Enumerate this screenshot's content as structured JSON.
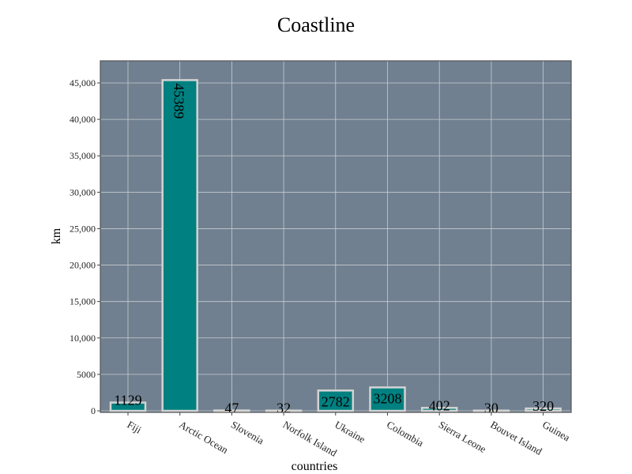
{
  "chart_data": {
    "type": "bar",
    "title": "Coastline",
    "xlabel": "countries",
    "ylabel": "km",
    "categories": [
      "Fiji",
      "Arctic Ocean",
      "Slovenia",
      "Norfolk Island",
      "Ukraine",
      "Colombia",
      "Sierra Leone",
      "Bouvet Island",
      "Guinea"
    ],
    "values": [
      1129,
      45389,
      47,
      32,
      2782,
      3208,
      402,
      30,
      320
    ],
    "data_labels": [
      "1129",
      "45389",
      "47",
      "32",
      "2782",
      "3208",
      "402",
      "30",
      "320"
    ],
    "ylim": [
      0,
      47500
    ],
    "yticks": [
      0,
      5000,
      10000,
      15000,
      20000,
      25000,
      30000,
      35000,
      40000,
      45000
    ],
    "ytick_labels": [
      "0",
      "5000",
      "10,000",
      "15,000",
      "20,000",
      "25,000",
      "30,000",
      "35,000",
      "40,000",
      "45,000"
    ],
    "grid": true,
    "colors": {
      "plot_background": "#708090",
      "bar_fill": "#008080",
      "bar_edge": "#d3d3d3",
      "grid": "#c8ccd0"
    }
  }
}
